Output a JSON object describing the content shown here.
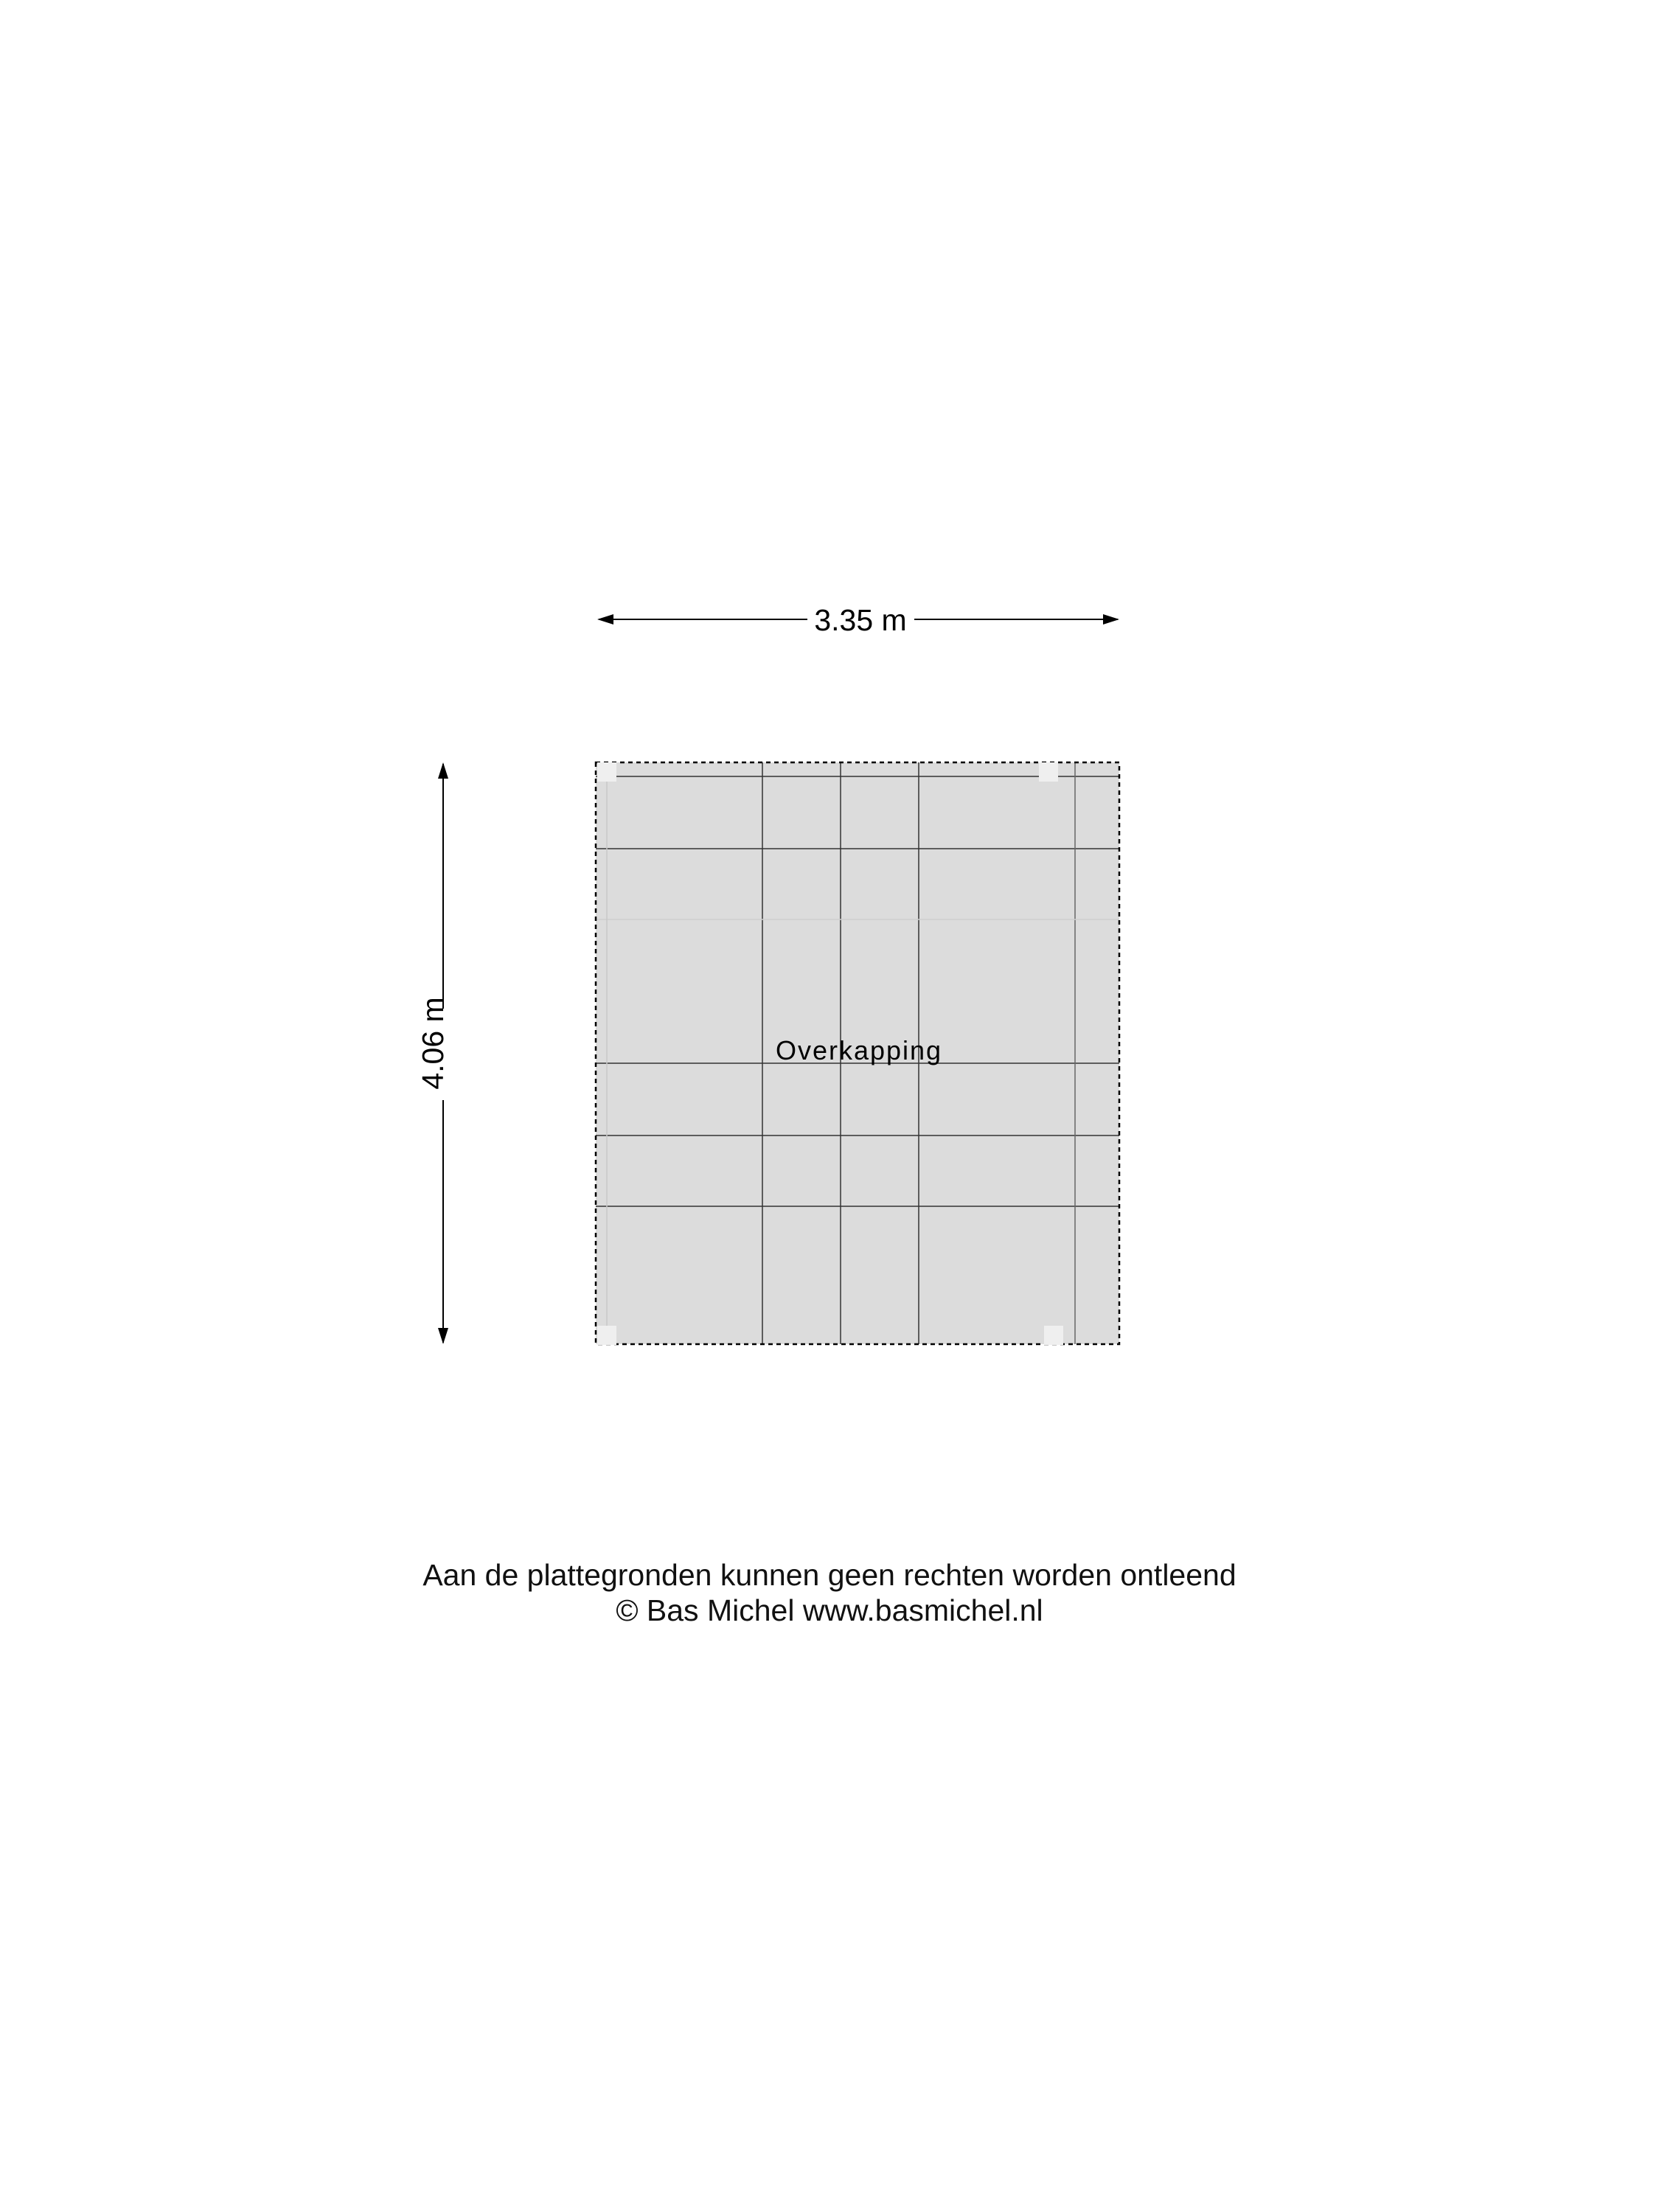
{
  "plan": {
    "room_label": "Overkapping",
    "width_label": "3.35 m",
    "height_label": "4.06 m",
    "fill_color": "#dcdcdc"
  },
  "footer": {
    "disclaimer": "Aan de plattegronden kunnen geen rechten worden ontleend",
    "copyright": "© Bas Michel www.basmichel.nl"
  }
}
